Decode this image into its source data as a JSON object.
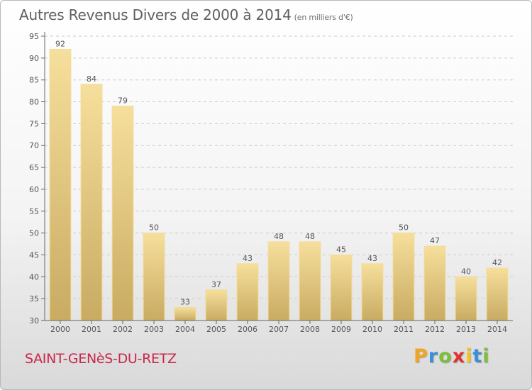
{
  "header": {
    "title": "Autres Revenus Divers de 2000 à 2014",
    "unit": "(en milliers d'€)"
  },
  "footer": {
    "commune": "SAINT-GENèS-DU-RETZ",
    "logo_letters": [
      "P",
      "r",
      "o",
      "x",
      "i",
      "t",
      "i"
    ],
    "logo_colors": [
      "#f2a521",
      "#3a8fd6",
      "#7cbf3a",
      "#e0322f",
      "#f2c41e",
      "#3a8fd6",
      "#7cbf3a"
    ]
  },
  "chart_data": {
    "type": "bar",
    "title": "Autres Revenus Divers de 2000 à 2014",
    "subtitle": "(en milliers d'€)",
    "categories": [
      "2000",
      "2001",
      "2002",
      "2003",
      "2004",
      "2005",
      "2006",
      "2007",
      "2008",
      "2009",
      "2010",
      "2011",
      "2012",
      "2013",
      "2014"
    ],
    "values": [
      92,
      84,
      79,
      50,
      33,
      37,
      43,
      48,
      48,
      45,
      43,
      50,
      47,
      40,
      42
    ],
    "ylim": [
      30,
      95
    ],
    "yticks": [
      30,
      35,
      40,
      45,
      50,
      55,
      60,
      65,
      70,
      75,
      80,
      85,
      90,
      95
    ],
    "grid": "horizontal-dashed",
    "legend": "none",
    "bar_color": "#e9ce86",
    "grid_color": "#cccccc"
  }
}
